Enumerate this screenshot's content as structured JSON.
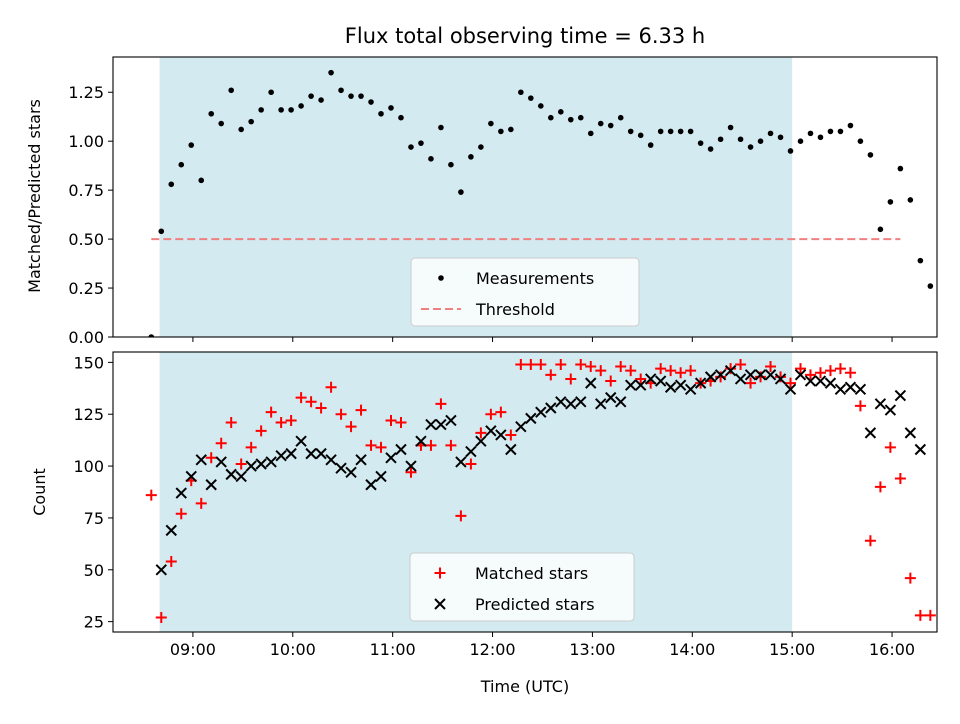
{
  "chart_data": [
    {
      "type": "scatter",
      "title": "Flux total observing time = 6.33 h",
      "xlabel": "",
      "ylabel": "Matched/Predicted stars",
      "ylim": [
        0,
        1.43
      ],
      "xlim": [
        "08:12",
        "16:27"
      ],
      "yticks": [
        "0.00",
        "0.25",
        "0.50",
        "0.75",
        "1.00",
        "1.25"
      ],
      "shaded_range": [
        "08:40",
        "15:00"
      ],
      "shade_color": "#d3eaf1",
      "threshold": {
        "name": "Threshold",
        "value": 0.5,
        "x": [
          "08:35",
          "16:05"
        ],
        "color": "#f08080"
      },
      "legend": {
        "location": "lower center",
        "entries": [
          "Measurements",
          "Threshold"
        ]
      },
      "series": [
        {
          "name": "Measurements",
          "marker": "dot",
          "color": "#000000",
          "points": [
            [
              "08:35",
              0.0
            ],
            [
              "08:41",
              0.54
            ],
            [
              "08:47",
              0.78
            ],
            [
              "08:53",
              0.88
            ],
            [
              "08:59",
              0.98
            ],
            [
              "09:05",
              0.8
            ],
            [
              "09:11",
              1.14
            ],
            [
              "09:17",
              1.09
            ],
            [
              "09:23",
              1.26
            ],
            [
              "09:29",
              1.06
            ],
            [
              "09:35",
              1.1
            ],
            [
              "09:41",
              1.16
            ],
            [
              "09:47",
              1.25
            ],
            [
              "09:53",
              1.16
            ],
            [
              "09:59",
              1.16
            ],
            [
              "10:05",
              1.18
            ],
            [
              "10:11",
              1.23
            ],
            [
              "10:17",
              1.21
            ],
            [
              "10:23",
              1.35
            ],
            [
              "10:29",
              1.26
            ],
            [
              "10:35",
              1.23
            ],
            [
              "10:41",
              1.23
            ],
            [
              "10:47",
              1.2
            ],
            [
              "10:53",
              1.14
            ],
            [
              "10:59",
              1.17
            ],
            [
              "11:05",
              1.12
            ],
            [
              "11:11",
              0.97
            ],
            [
              "11:17",
              0.99
            ],
            [
              "11:23",
              0.91
            ],
            [
              "11:29",
              1.07
            ],
            [
              "11:35",
              0.88
            ],
            [
              "11:41",
              0.74
            ],
            [
              "11:47",
              0.92
            ],
            [
              "11:53",
              0.97
            ],
            [
              "11:59",
              1.09
            ],
            [
              "12:05",
              1.05
            ],
            [
              "12:11",
              1.06
            ],
            [
              "12:17",
              1.25
            ],
            [
              "12:23",
              1.22
            ],
            [
              "12:29",
              1.18
            ],
            [
              "12:35",
              1.12
            ],
            [
              "12:41",
              1.15
            ],
            [
              "12:47",
              1.11
            ],
            [
              "12:53",
              1.12
            ],
            [
              "12:59",
              1.04
            ],
            [
              "13:05",
              1.09
            ],
            [
              "13:11",
              1.08
            ],
            [
              "13:17",
              1.12
            ],
            [
              "13:23",
              1.05
            ],
            [
              "13:29",
              1.03
            ],
            [
              "13:35",
              0.98
            ],
            [
              "13:41",
              1.05
            ],
            [
              "13:47",
              1.05
            ],
            [
              "13:53",
              1.05
            ],
            [
              "13:59",
              1.05
            ],
            [
              "14:05",
              0.99
            ],
            [
              "14:11",
              0.96
            ],
            [
              "14:17",
              1.01
            ],
            [
              "14:23",
              1.07
            ],
            [
              "14:29",
              1.01
            ],
            [
              "14:35",
              0.97
            ],
            [
              "14:41",
              1.0
            ],
            [
              "14:47",
              1.04
            ],
            [
              "14:53",
              1.02
            ],
            [
              "14:59",
              0.95
            ],
            [
              "15:05",
              1.0
            ],
            [
              "15:11",
              1.04
            ],
            [
              "15:17",
              1.02
            ],
            [
              "15:23",
              1.05
            ],
            [
              "15:29",
              1.05
            ],
            [
              "15:35",
              1.08
            ],
            [
              "15:41",
              1.0
            ],
            [
              "15:47",
              0.93
            ],
            [
              "15:53",
              0.55
            ],
            [
              "15:59",
              0.69
            ],
            [
              "16:05",
              0.86
            ],
            [
              "16:11",
              0.7
            ],
            [
              "16:17",
              0.39
            ],
            [
              "16:23",
              0.26
            ]
          ]
        }
      ]
    },
    {
      "type": "scatter",
      "title": "",
      "xlabel": "Time (UTC)",
      "ylabel": "Count",
      "ylim": [
        20,
        155
      ],
      "xlim": [
        "08:12",
        "16:27"
      ],
      "xticks": [
        "09:00",
        "10:00",
        "11:00",
        "12:00",
        "13:00",
        "14:00",
        "15:00",
        "16:00"
      ],
      "yticks": [
        "25",
        "50",
        "75",
        "100",
        "125",
        "150"
      ],
      "shaded_range": [
        "08:40",
        "15:00"
      ],
      "shade_color": "#d3eaf1",
      "legend": {
        "location": "lower center",
        "entries": [
          "Matched stars",
          "Predicted stars"
        ]
      },
      "series": [
        {
          "name": "Matched stars",
          "marker": "plus",
          "color": "#ff0000",
          "points": [
            [
              "08:35",
              86
            ],
            [
              "08:41",
              27
            ],
            [
              "08:47",
              54
            ],
            [
              "08:53",
              77
            ],
            [
              "08:59",
              93
            ],
            [
              "09:05",
              82
            ],
            [
              "09:11",
              104
            ],
            [
              "09:17",
              111
            ],
            [
              "09:23",
              121
            ],
            [
              "09:29",
              101
            ],
            [
              "09:35",
              109
            ],
            [
              "09:41",
              117
            ],
            [
              "09:47",
              126
            ],
            [
              "09:53",
              121
            ],
            [
              "09:59",
              122
            ],
            [
              "10:05",
              133
            ],
            [
              "10:11",
              131
            ],
            [
              "10:17",
              128
            ],
            [
              "10:23",
              138
            ],
            [
              "10:29",
              125
            ],
            [
              "10:35",
              119
            ],
            [
              "10:41",
              127
            ],
            [
              "10:47",
              110
            ],
            [
              "10:53",
              109
            ],
            [
              "10:59",
              122
            ],
            [
              "11:05",
              121
            ],
            [
              "11:11",
              97
            ],
            [
              "11:17",
              110
            ],
            [
              "11:23",
              110
            ],
            [
              "11:29",
              130
            ],
            [
              "11:35",
              110
            ],
            [
              "11:41",
              76
            ],
            [
              "11:47",
              101
            ],
            [
              "11:53",
              116
            ],
            [
              "11:59",
              125
            ],
            [
              "12:05",
              126
            ],
            [
              "12:11",
              115
            ],
            [
              "12:17",
              149
            ],
            [
              "12:23",
              149
            ],
            [
              "12:29",
              149
            ],
            [
              "12:35",
              144
            ],
            [
              "12:41",
              149
            ],
            [
              "12:47",
              142
            ],
            [
              "12:53",
              149
            ],
            [
              "12:59",
              148
            ],
            [
              "13:05",
              146
            ],
            [
              "13:11",
              141
            ],
            [
              "13:17",
              148
            ],
            [
              "13:23",
              146
            ],
            [
              "13:29",
              142
            ],
            [
              "13:35",
              140
            ],
            [
              "13:41",
              147
            ],
            [
              "13:47",
              146
            ],
            [
              "13:53",
              145
            ],
            [
              "13:59",
              146
            ],
            [
              "14:05",
              140
            ],
            [
              "14:11",
              141
            ],
            [
              "14:17",
              143
            ],
            [
              "14:23",
              147
            ],
            [
              "14:29",
              149
            ],
            [
              "14:35",
              140
            ],
            [
              "14:41",
              143
            ],
            [
              "14:47",
              148
            ],
            [
              "14:53",
              143
            ],
            [
              "14:59",
              140
            ],
            [
              "15:05",
              147
            ],
            [
              "15:11",
              144
            ],
            [
              "15:17",
              145
            ],
            [
              "15:23",
              146
            ],
            [
              "15:29",
              147
            ],
            [
              "15:35",
              145
            ],
            [
              "15:41",
              129
            ],
            [
              "15:47",
              64
            ],
            [
              "15:53",
              90
            ],
            [
              "15:59",
              109
            ],
            [
              "16:05",
              94
            ],
            [
              "16:11",
              46
            ],
            [
              "16:17",
              28
            ],
            [
              "16:23",
              28
            ]
          ]
        },
        {
          "name": "Predicted stars",
          "marker": "cross",
          "color": "#000000",
          "points": [
            [
              "08:41",
              50
            ],
            [
              "08:47",
              69
            ],
            [
              "08:53",
              87
            ],
            [
              "08:59",
              95
            ],
            [
              "09:05",
              103
            ],
            [
              "09:11",
              91
            ],
            [
              "09:17",
              102
            ],
            [
              "09:23",
              96
            ],
            [
              "09:29",
              95
            ],
            [
              "09:35",
              100
            ],
            [
              "09:41",
              101
            ],
            [
              "09:47",
              102
            ],
            [
              "09:53",
              105
            ],
            [
              "09:59",
              106
            ],
            [
              "10:05",
              112
            ],
            [
              "10:11",
              106
            ],
            [
              "10:17",
              106
            ],
            [
              "10:23",
              103
            ],
            [
              "10:29",
              99
            ],
            [
              "10:35",
              97
            ],
            [
              "10:41",
              103
            ],
            [
              "10:47",
              91
            ],
            [
              "10:53",
              95
            ],
            [
              "10:59",
              104
            ],
            [
              "11:05",
              108
            ],
            [
              "11:11",
              100
            ],
            [
              "11:17",
              112
            ],
            [
              "11:23",
              120
            ],
            [
              "11:29",
              120
            ],
            [
              "11:35",
              122
            ],
            [
              "11:41",
              102
            ],
            [
              "11:47",
              107
            ],
            [
              "11:53",
              112
            ],
            [
              "11:59",
              117
            ],
            [
              "12:05",
              115
            ],
            [
              "12:11",
              108
            ],
            [
              "12:17",
              119
            ],
            [
              "12:23",
              123
            ],
            [
              "12:29",
              126
            ],
            [
              "12:35",
              128
            ],
            [
              "12:41",
              131
            ],
            [
              "12:47",
              130
            ],
            [
              "12:53",
              131
            ],
            [
              "12:59",
              140
            ],
            [
              "13:05",
              130
            ],
            [
              "13:11",
              133
            ],
            [
              "13:17",
              131
            ],
            [
              "13:23",
              139
            ],
            [
              "13:29",
              139
            ],
            [
              "13:35",
              142
            ],
            [
              "13:41",
              141
            ],
            [
              "13:47",
              138
            ],
            [
              "13:53",
              139
            ],
            [
              "13:59",
              137
            ],
            [
              "14:05",
              140
            ],
            [
              "14:11",
              143
            ],
            [
              "14:17",
              144
            ],
            [
              "14:23",
              146
            ],
            [
              "14:29",
              142
            ],
            [
              "14:35",
              144
            ],
            [
              "14:41",
              144
            ],
            [
              "14:47",
              144
            ],
            [
              "14:53",
              142
            ],
            [
              "14:59",
              137
            ],
            [
              "15:05",
              144
            ],
            [
              "15:11",
              141
            ],
            [
              "15:17",
              141
            ],
            [
              "15:23",
              140
            ],
            [
              "15:29",
              137
            ],
            [
              "15:35",
              138
            ],
            [
              "15:41",
              137
            ],
            [
              "15:47",
              116
            ],
            [
              "15:53",
              130
            ],
            [
              "15:59",
              127
            ],
            [
              "16:05",
              134
            ],
            [
              "16:11",
              116
            ],
            [
              "16:17",
              108
            ]
          ]
        }
      ]
    }
  ]
}
